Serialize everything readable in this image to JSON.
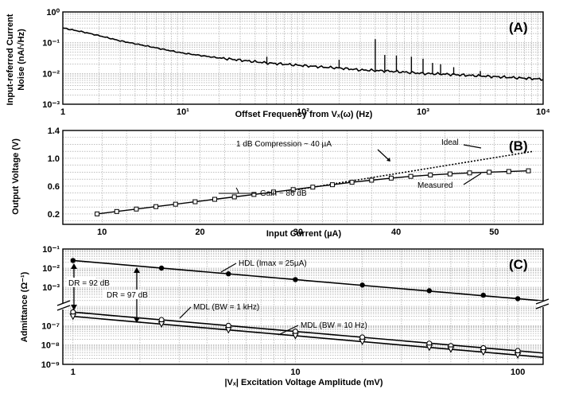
{
  "chart_data": [
    {
      "panel": "(A)",
      "type": "line",
      "xscale": "log",
      "yscale": "log",
      "xlim": [
        1,
        10000
      ],
      "ylim": [
        0.001,
        1
      ],
      "x_ticks": [
        1,
        10,
        100,
        1000,
        10000
      ],
      "x_tick_labels": [
        "1",
        "10¹",
        "10²",
        "10³",
        "10⁴"
      ],
      "y_ticks": [
        1,
        0.1,
        0.01,
        0.001
      ],
      "y_tick_labels": [
        "10⁰",
        "10⁻¹",
        "10⁻²",
        "10⁻³"
      ],
      "xlabel": "Offset Frequency from Vₓ(ω) (Hz)",
      "ylabel": [
        "Input-referred Current",
        "Noise (nA/√Hz)"
      ],
      "grid": true,
      "series": [
        {
          "x": [
            1,
            1.5,
            2,
            3,
            5,
            7,
            10,
            15,
            20,
            30,
            50,
            70,
            100,
            150,
            200,
            300,
            500,
            700,
            1000,
            1500,
            2000,
            3000,
            5000,
            7000,
            10000
          ],
          "values": [
            0.3,
            0.22,
            0.17,
            0.115,
            0.078,
            0.06,
            0.046,
            0.037,
            0.032,
            0.027,
            0.022,
            0.02,
            0.018,
            0.016,
            0.015,
            0.013,
            0.012,
            0.011,
            0.01,
            0.0095,
            0.009,
            0.0083,
            0.0075,
            0.007,
            0.0065
          ]
        }
      ],
      "spikes": [
        {
          "x": 50,
          "y": 0.035
        },
        {
          "x": 200,
          "y": 0.028
        },
        {
          "x": 400,
          "y": 0.13
        },
        {
          "x": 480,
          "y": 0.04
        },
        {
          "x": 600,
          "y": 0.038
        },
        {
          "x": 800,
          "y": 0.035
        },
        {
          "x": 1000,
          "y": 0.03
        },
        {
          "x": 1200,
          "y": 0.022
        },
        {
          "x": 1400,
          "y": 0.02
        },
        {
          "x": 1800,
          "y": 0.016
        },
        {
          "x": 3000,
          "y": 0.012
        }
      ]
    },
    {
      "panel": "(B)",
      "type": "line",
      "xlim": [
        6,
        55
      ],
      "ylim": [
        0.05,
        1.4
      ],
      "x_ticks": [
        10,
        20,
        30,
        40,
        50
      ],
      "x_tick_labels": [
        "10",
        "20",
        "30",
        "40",
        "50"
      ],
      "y_ticks": [
        1.4,
        1.0,
        0.6,
        0.2
      ],
      "y_tick_labels": [
        "1.4",
        "1.0",
        "0.6",
        "0.2"
      ],
      "xlabel": "Input Current (µA)",
      "ylabel": "Output Voltage (V)",
      "grid": true,
      "series": [
        {
          "name": "Measured",
          "x": [
            9.5,
            11.5,
            13.5,
            15.5,
            17.5,
            19.5,
            21.5,
            23.5,
            25.5,
            27.5,
            29.5,
            31.5,
            33.5,
            35.5,
            37.5,
            39.5,
            41.5,
            43.5,
            45.5,
            47.5,
            49.5,
            51.5,
            53.5
          ],
          "values": [
            0.2,
            0.235,
            0.27,
            0.305,
            0.34,
            0.375,
            0.41,
            0.445,
            0.48,
            0.515,
            0.55,
            0.585,
            0.62,
            0.655,
            0.685,
            0.715,
            0.74,
            0.76,
            0.775,
            0.79,
            0.8,
            0.81,
            0.82
          ]
        },
        {
          "name": "Ideal",
          "x": [
            30,
            54
          ],
          "values": [
            0.55,
            1.1
          ]
        }
      ],
      "annotations": [
        "1 dB Compression ~ 40 µA",
        "Gain ~ 86 dB",
        "Ideal",
        "Measured"
      ]
    },
    {
      "panel": "(C)",
      "type": "line",
      "xscale": "log",
      "yscale": "log (broken axis)",
      "xlim": [
        0.9,
        130
      ],
      "x_ticks": [
        1,
        10,
        100
      ],
      "x_tick_labels": [
        "1",
        "10",
        "100"
      ],
      "y_ticks_upper": [
        0.1,
        0.01,
        0.001
      ],
      "y_tick_labels_upper": [
        "10⁻¹",
        "10⁻²",
        "10⁻³"
      ],
      "y_ticks_lower": [
        1e-07,
        1e-08,
        1e-09
      ],
      "y_tick_labels_lower": [
        "10⁻⁷",
        "10⁻⁸",
        "10⁻⁹"
      ],
      "xlabel": "|Vₓ| Excitation Voltage Amplitude (mV)",
      "ylabel": "Admittance (Ω⁻¹)",
      "grid": true,
      "series": [
        {
          "name": "HDL (Imax = 25µA)",
          "marker": "dot",
          "x": [
            1,
            2.5,
            5,
            10,
            20,
            40,
            70,
            100
          ],
          "values": [
            0.025,
            0.01,
            0.005,
            0.0025,
            0.0013,
            0.00065,
            0.00038,
            0.00025
          ]
        },
        {
          "name": "MDL (BW = 1 kHz)",
          "marker": "circle",
          "x": [
            1,
            2.5,
            5,
            10,
            20,
            40,
            50,
            70,
            100
          ],
          "values": [
            5e-07,
            2e-07,
            1e-07,
            5e-08,
            2.5e-08,
            1.2e-08,
            9e-09,
            7e-09,
            5e-09
          ]
        },
        {
          "name": "MDL (BW = 10 Hz)",
          "marker": "triangle",
          "x": [
            1,
            2.5,
            5,
            10,
            20,
            40,
            50,
            70,
            100
          ],
          "values": [
            3e-07,
            1.2e-07,
            6e-08,
            3e-08,
            1.5e-08,
            7.5e-09,
            6e-09,
            4.3e-09,
            3e-09
          ]
        }
      ],
      "annotations": [
        "DR = 92 dB",
        "DR = 97 dB"
      ]
    }
  ],
  "labels": {
    "a": {
      "panel": "(A)",
      "xlabel": "Offset Frequency from Vₓ(ω) (Hz)",
      "ylabel1": "Input-referred Current",
      "ylabel2": "Noise (nA/√Hz)"
    },
    "b": {
      "panel": "(B)",
      "xlabel": "Input Current (µA)",
      "ylabel": "Output Voltage (V)",
      "comp": "1 dB Compression ~ 40 µA",
      "gain": "Gain ~ 86 dB",
      "ideal": "Ideal",
      "measured": "Measured"
    },
    "c": {
      "panel": "(C)",
      "xlabel": "|Vₓ| Excitation Voltage Amplitude (mV)",
      "ylabel": "Admittance (Ω⁻¹)",
      "hdl": "HDL (Imax = 25µA)",
      "mdl1k": "MDL (BW = 1 kHz)",
      "mdl10": "MDL (BW = 10 Hz)",
      "dr92": "DR = 92 dB",
      "dr97": "DR = 97 dB"
    }
  }
}
